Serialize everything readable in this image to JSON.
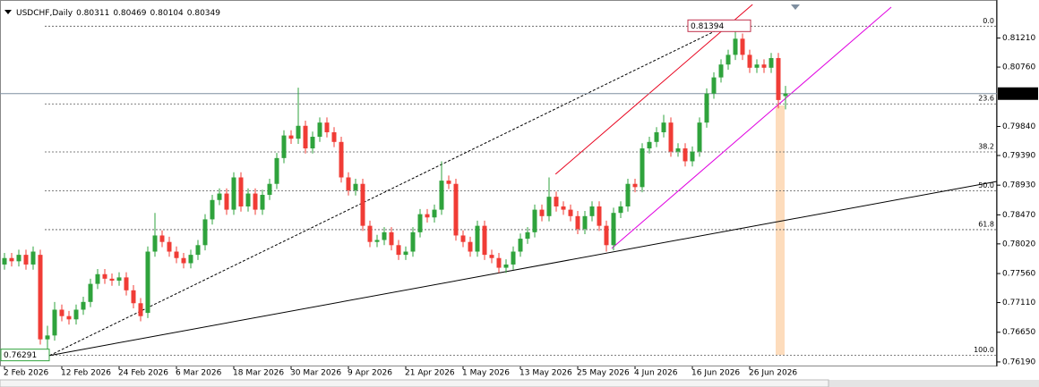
{
  "chart_data": {
    "type": "candlestick",
    "title": "USDCHF,Daily",
    "categories": [
      "2 Feb 2026",
      null,
      null,
      null,
      null,
      null,
      null,
      null,
      "12 Feb 2026",
      null,
      null,
      null,
      null,
      null,
      null,
      null,
      "24 Feb 2026",
      null,
      null,
      null,
      null,
      null,
      null,
      null,
      "6 Mar 2026",
      null,
      null,
      null,
      null,
      null,
      null,
      null,
      "18 Mar 2026",
      null,
      null,
      null,
      null,
      null,
      null,
      null,
      "30 Mar 2026",
      null,
      null,
      null,
      null,
      null,
      null,
      null,
      "9 Apr 2026",
      null,
      null,
      null,
      null,
      null,
      null,
      null,
      "21 Apr 2026",
      null,
      null,
      null,
      null,
      null,
      null,
      null,
      "1 May 2026",
      null,
      null,
      null,
      null,
      null,
      null,
      null,
      "13 May 2026",
      null,
      null,
      null,
      null,
      null,
      null,
      null,
      "25 May 2026",
      null,
      null,
      null,
      null,
      null,
      null,
      null,
      "4 Jun 2026",
      null,
      null,
      null,
      null,
      null,
      null,
      null,
      "16 Jun 2026",
      null,
      null,
      null,
      null,
      null,
      null,
      null,
      "26 Jun 2026",
      null,
      null,
      null,
      null,
      null
    ],
    "open": [
      0.777,
      0.778,
      0.7775,
      0.7785,
      0.777,
      0.7785,
      0.7654,
      0.766,
      0.77,
      0.769,
      0.7685,
      0.77,
      0.7712,
      0.774,
      0.7755,
      0.7748,
      0.7745,
      0.775,
      0.773,
      0.771,
      0.7695,
      0.779,
      0.7815,
      0.7805,
      0.779,
      0.778,
      0.7772,
      0.7785,
      0.78,
      0.784,
      0.787,
      0.788,
      0.7855,
      0.7905,
      0.786,
      0.788,
      0.7855,
      0.7878,
      0.7895,
      0.7935,
      0.797,
      0.7965,
      0.7985,
      0.795,
      0.7968,
      0.799,
      0.7975,
      0.796,
      0.7905,
      0.7885,
      0.7895,
      0.783,
      0.7805,
      0.7808,
      0.782,
      0.78,
      0.7785,
      0.779,
      0.782,
      0.7848,
      0.7843,
      0.7855,
      0.79,
      0.7895,
      0.7815,
      0.7805,
      0.779,
      0.783,
      0.7785,
      0.778,
      0.7765,
      0.777,
      0.779,
      0.781,
      0.782,
      0.7855,
      0.7845,
      0.7875,
      0.786,
      0.7855,
      0.7845,
      0.7825,
      0.7845,
      0.786,
      0.783,
      0.78,
      0.785,
      0.786,
      0.7895,
      0.789,
      0.795,
      0.796,
      0.7975,
      0.799,
      0.7945,
      0.795,
      0.793,
      0.7945,
      0.799,
      0.8035,
      0.806,
      0.808,
      0.8095,
      0.812,
      0.8095,
      0.8075,
      0.808,
      0.8075,
      0.809,
      0.80311
    ],
    "high": [
      0.7788,
      0.7788,
      0.7793,
      0.7793,
      0.7798,
      0.7793,
      0.7675,
      0.7712,
      0.7708,
      0.7698,
      0.7708,
      0.772,
      0.7748,
      0.7763,
      0.7763,
      0.7756,
      0.7758,
      0.7758,
      0.7738,
      0.7718,
      0.7798,
      0.785,
      0.7823,
      0.7813,
      0.7798,
      0.7788,
      0.7793,
      0.7808,
      0.7848,
      0.7878,
      0.7888,
      0.7888,
      0.7913,
      0.7913,
      0.7888,
      0.7888,
      0.7886,
      0.7903,
      0.7943,
      0.7978,
      0.7978,
      0.8044,
      0.7993,
      0.7976,
      0.7998,
      0.7998,
      0.7983,
      0.7968,
      0.7913,
      0.7903,
      0.7903,
      0.7838,
      0.7816,
      0.7828,
      0.7828,
      0.7808,
      0.7798,
      0.7828,
      0.7856,
      0.7856,
      0.7863,
      0.793,
      0.7908,
      0.7903,
      0.7823,
      0.7813,
      0.7838,
      0.7838,
      0.7793,
      0.7788,
      0.7778,
      0.7798,
      0.7818,
      0.7828,
      0.7863,
      0.7863,
      0.7905,
      0.7883,
      0.7868,
      0.7863,
      0.7853,
      0.7853,
      0.7868,
      0.7868,
      0.7838,
      0.7858,
      0.7868,
      0.7903,
      0.7903,
      0.7958,
      0.7968,
      0.7983,
      0.8002,
      0.7998,
      0.7958,
      0.7958,
      0.7953,
      0.7998,
      0.8043,
      0.8068,
      0.8088,
      0.8103,
      0.81394,
      0.8128,
      0.8103,
      0.8088,
      0.8088,
      0.8098,
      0.8098,
      0.80469
    ],
    "low": [
      0.7762,
      0.7767,
      0.7767,
      0.7762,
      0.7762,
      0.7646,
      0.76291,
      0.7652,
      0.7682,
      0.7677,
      0.7677,
      0.7692,
      0.7704,
      0.7732,
      0.774,
      0.7737,
      0.7737,
      0.7722,
      0.7702,
      0.7682,
      0.7687,
      0.7782,
      0.7797,
      0.7782,
      0.7772,
      0.7764,
      0.7764,
      0.7777,
      0.7792,
      0.7832,
      0.7862,
      0.7847,
      0.7847,
      0.7852,
      0.7852,
      0.7847,
      0.7847,
      0.787,
      0.7887,
      0.7927,
      0.7957,
      0.7957,
      0.7942,
      0.7942,
      0.796,
      0.7967,
      0.7952,
      0.7897,
      0.7877,
      0.7877,
      0.7822,
      0.7797,
      0.7797,
      0.78,
      0.7792,
      0.7777,
      0.7777,
      0.7782,
      0.7812,
      0.7835,
      0.7835,
      0.7847,
      0.7887,
      0.7807,
      0.7797,
      0.7782,
      0.7782,
      0.7777,
      0.7772,
      0.7757,
      0.7757,
      0.7762,
      0.7782,
      0.7802,
      0.7812,
      0.7837,
      0.7837,
      0.7852,
      0.7847,
      0.7837,
      0.7817,
      0.7817,
      0.7837,
      0.7822,
      0.779,
      0.7792,
      0.7842,
      0.7852,
      0.7882,
      0.7882,
      0.7942,
      0.7952,
      0.7967,
      0.7937,
      0.7937,
      0.7922,
      0.7922,
      0.7937,
      0.7982,
      0.8027,
      0.8052,
      0.8072,
      0.8087,
      0.8087,
      0.8067,
      0.8067,
      0.8067,
      0.8067,
      0.8012,
      0.80104
    ],
    "close": [
      0.778,
      0.7775,
      0.7785,
      0.777,
      0.779,
      0.7654,
      0.766,
      0.77,
      0.769,
      0.7685,
      0.77,
      0.7712,
      0.774,
      0.7755,
      0.7748,
      0.7745,
      0.775,
      0.773,
      0.771,
      0.769,
      0.779,
      0.7815,
      0.7805,
      0.779,
      0.778,
      0.7772,
      0.7785,
      0.78,
      0.784,
      0.787,
      0.788,
      0.7855,
      0.7905,
      0.786,
      0.788,
      0.7855,
      0.7878,
      0.7895,
      0.7935,
      0.797,
      0.7965,
      0.7985,
      0.795,
      0.7968,
      0.799,
      0.7975,
      0.796,
      0.7905,
      0.7885,
      0.7895,
      0.783,
      0.7805,
      0.7808,
      0.782,
      0.78,
      0.7785,
      0.779,
      0.782,
      0.7848,
      0.7843,
      0.7855,
      0.79,
      0.7895,
      0.7815,
      0.7805,
      0.779,
      0.783,
      0.7785,
      0.778,
      0.7765,
      0.777,
      0.779,
      0.781,
      0.782,
      0.7855,
      0.7845,
      0.7875,
      0.786,
      0.7855,
      0.7845,
      0.7825,
      0.7845,
      0.786,
      0.783,
      0.78,
      0.785,
      0.786,
      0.7895,
      0.789,
      0.795,
      0.796,
      0.7975,
      0.799,
      0.7945,
      0.795,
      0.793,
      0.7945,
      0.799,
      0.8035,
      0.806,
      0.808,
      0.8095,
      0.812,
      0.8095,
      0.8075,
      0.808,
      0.8075,
      0.809,
      0.8025,
      0.80349
    ],
    "up_color": "#2fa33c",
    "down_color": "#f03c36",
    "ylim": [
      0.7612,
      0.818
    ],
    "yticks": [
      {
        "value": 0.8121,
        "label": "0.81210"
      },
      {
        "value": 0.8076,
        "label": "0.80760"
      },
      {
        "value": 0.7984,
        "label": "0.79840"
      },
      {
        "value": 0.7939,
        "label": "0.79390"
      },
      {
        "value": 0.7893,
        "label": "0.78930"
      },
      {
        "value": 0.7847,
        "label": "0.78470"
      },
      {
        "value": 0.7802,
        "label": "0.78020"
      },
      {
        "value": 0.7756,
        "label": "0.77560"
      },
      {
        "value": 0.7711,
        "label": "0.77110"
      },
      {
        "value": 0.7665,
        "label": "0.76650"
      },
      {
        "value": 0.7619,
        "label": "0.76190"
      }
    ],
    "fibonacci": {
      "high": 0.81394,
      "low": 0.76291,
      "levels": [
        {
          "value": 0,
          "label": "0.0"
        },
        23.6,
        38.2,
        {
          "value": 50,
          "label": "50.0"
        },
        61.8,
        {
          "value": 100,
          "label": "100.0"
        }
      ]
    },
    "trendlines": [
      {
        "color": "#000000",
        "dash": false,
        "points": [
          [
            6.3,
            0.7629
          ],
          [
            138.5,
            0.78988
          ]
        ]
      },
      {
        "color": "#000000",
        "dash": true,
        "points": [
          [
            6.3,
            0.7629
          ],
          [
            100.4,
            0.81385
          ]
        ]
      },
      {
        "color": "#e8001c",
        "dash": false,
        "points": [
          [
            76.9,
            0.791
          ],
          [
            104.4,
            0.81731
          ]
        ]
      },
      {
        "color": "#e000e0",
        "dash": false,
        "points": [
          [
            84.75,
            0.7795
          ],
          [
            123.75,
            0.81689
          ]
        ]
      }
    ]
  }
}
